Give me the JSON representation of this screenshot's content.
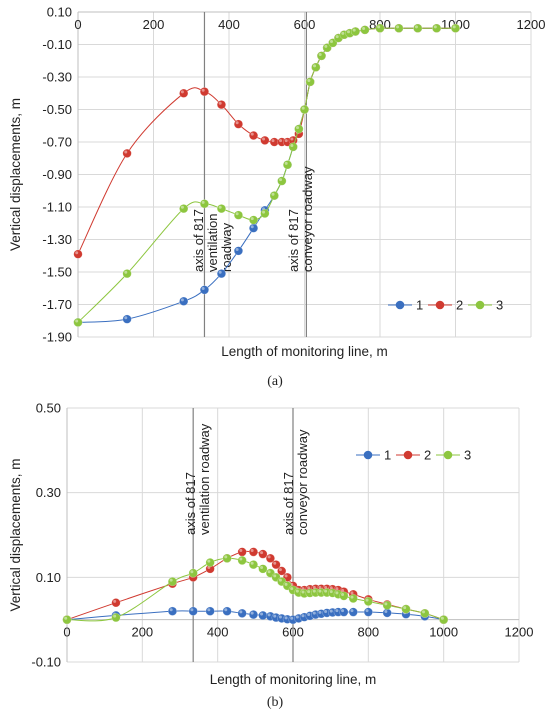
{
  "colors": {
    "1": "#3a6fc0",
    "2": "#d03a30",
    "3": "#8dc63f",
    "grid": "#d9d9d9",
    "axis": "#bfbfbf",
    "marker_line": "#808080"
  },
  "chart_data": [
    {
      "type": "line",
      "panel_label": "(a)",
      "xlabel": "Length of monitoring line, m",
      "ylabel": "Vertical displacements, m",
      "xlim": [
        0,
        1200
      ],
      "ylim": [
        -1.9,
        0.1
      ],
      "x_ticks": [
        "0",
        "200",
        "400",
        "600",
        "800",
        "1000",
        "1200"
      ],
      "y_ticks": [
        "0.10",
        "-0.10",
        "-0.30",
        "-0.50",
        "-0.70",
        "-0.90",
        "-1.10",
        "-1.30",
        "-1.50",
        "-1.70",
        "-1.90"
      ],
      "x_axis_position": "top",
      "grid": true,
      "legend_position": "bottom-right",
      "vertical_lines": [
        {
          "x": 335,
          "text_lines": [
            "axis of 817",
            "ventilation",
            "roadway"
          ]
        },
        {
          "x": 605,
          "text_lines": [
            "axis of 817",
            "conveyor roadway"
          ]
        }
      ],
      "series": [
        {
          "name": "1",
          "x": [
            0,
            130,
            280,
            335,
            380,
            425,
            465,
            495,
            520,
            540,
            555,
            570,
            585,
            600,
            615,
            630,
            645,
            660,
            675,
            690,
            705,
            720,
            735,
            760,
            800,
            850,
            900,
            950,
            1000
          ],
          "y": [
            -1.81,
            -1.79,
            -1.68,
            -1.61,
            -1.51,
            -1.37,
            -1.23,
            -1.12,
            -1.03,
            -0.94,
            -0.84,
            -0.73,
            -0.62,
            -0.5,
            -0.33,
            -0.24,
            -0.17,
            -0.12,
            -0.09,
            -0.06,
            -0.04,
            -0.03,
            -0.02,
            -0.01,
            0.0,
            0.0,
            0.0,
            0.0,
            0.0
          ]
        },
        {
          "name": "2",
          "x": [
            0,
            130,
            280,
            335,
            380,
            425,
            465,
            495,
            520,
            540,
            555,
            570,
            585,
            600,
            615,
            630,
            645,
            660,
            675,
            690,
            705,
            720,
            735,
            760,
            800,
            850,
            900,
            950,
            1000
          ],
          "y": [
            -1.39,
            -0.77,
            -0.4,
            -0.39,
            -0.47,
            -0.59,
            -0.66,
            -0.69,
            -0.7,
            -0.7,
            -0.7,
            -0.69,
            -0.65,
            -0.5,
            -0.33,
            -0.24,
            -0.17,
            -0.12,
            -0.09,
            -0.06,
            -0.04,
            -0.03,
            -0.02,
            -0.01,
            0.0,
            0.0,
            0.0,
            0.0,
            0.0
          ]
        },
        {
          "name": "3",
          "x": [
            0,
            130,
            280,
            335,
            380,
            425,
            465,
            495,
            520,
            540,
            555,
            570,
            585,
            600,
            615,
            630,
            645,
            660,
            675,
            690,
            705,
            720,
            735,
            760,
            800,
            850,
            900,
            950,
            1000
          ],
          "y": [
            -1.81,
            -1.51,
            -1.11,
            -1.08,
            -1.11,
            -1.15,
            -1.18,
            -1.14,
            -1.03,
            -0.94,
            -0.84,
            -0.73,
            -0.62,
            -0.5,
            -0.33,
            -0.24,
            -0.17,
            -0.12,
            -0.09,
            -0.06,
            -0.04,
            -0.03,
            -0.02,
            -0.01,
            0.0,
            0.0,
            0.0,
            0.0,
            0.0
          ]
        }
      ]
    },
    {
      "type": "line",
      "panel_label": "(b)",
      "xlabel": "Length of monitoring line, m",
      "ylabel": "Vertical displacements, m",
      "xlim": [
        0,
        1200
      ],
      "ylim": [
        -0.1,
        0.5
      ],
      "x_ticks": [
        "0",
        "200",
        "400",
        "600",
        "800",
        "1000",
        "1200"
      ],
      "y_ticks": [
        "0.50",
        "0.30",
        "0.10",
        "-0.10"
      ],
      "x_axis_position": "zero",
      "grid": true,
      "legend_position": "top-right",
      "vertical_lines": [
        {
          "x": 335,
          "text_lines": [
            "axis of 817",
            "ventilation roadway"
          ]
        },
        {
          "x": 600,
          "text_lines": [
            "axis of 817",
            "conveyor roadway"
          ]
        }
      ],
      "series": [
        {
          "name": "1",
          "x": [
            0,
            130,
            280,
            335,
            380,
            425,
            465,
            495,
            520,
            540,
            555,
            570,
            585,
            600,
            615,
            630,
            645,
            660,
            675,
            690,
            705,
            720,
            735,
            760,
            800,
            850,
            900,
            950,
            1000
          ],
          "y": [
            0.0,
            0.01,
            0.02,
            0.02,
            0.02,
            0.02,
            0.015,
            0.012,
            0.01,
            0.008,
            0.005,
            0.003,
            0.001,
            0.0,
            0.003,
            0.006,
            0.009,
            0.012,
            0.014,
            0.016,
            0.017,
            0.018,
            0.018,
            0.018,
            0.018,
            0.016,
            0.013,
            0.008,
            0.0
          ]
        },
        {
          "name": "2",
          "x": [
            0,
            130,
            280,
            335,
            380,
            425,
            465,
            495,
            520,
            540,
            555,
            570,
            585,
            600,
            615,
            630,
            645,
            660,
            675,
            690,
            705,
            720,
            735,
            760,
            800,
            850,
            900,
            950,
            1000
          ],
          "y": [
            0.0,
            0.04,
            0.085,
            0.1,
            0.12,
            0.145,
            0.16,
            0.16,
            0.155,
            0.145,
            0.13,
            0.115,
            0.1,
            0.08,
            0.07,
            0.07,
            0.072,
            0.073,
            0.073,
            0.073,
            0.072,
            0.07,
            0.066,
            0.06,
            0.048,
            0.036,
            0.025,
            0.015,
            0.0
          ]
        },
        {
          "name": "3",
          "x": [
            0,
            130,
            280,
            335,
            380,
            425,
            465,
            495,
            520,
            540,
            555,
            570,
            585,
            600,
            615,
            630,
            645,
            660,
            675,
            690,
            705,
            720,
            735,
            760,
            800,
            850,
            900,
            950,
            1000
          ],
          "y": [
            0.0,
            0.005,
            0.09,
            0.11,
            0.135,
            0.145,
            0.14,
            0.13,
            0.12,
            0.11,
            0.1,
            0.09,
            0.08,
            0.07,
            0.064,
            0.062,
            0.063,
            0.064,
            0.064,
            0.064,
            0.063,
            0.06,
            0.056,
            0.05,
            0.043,
            0.034,
            0.025,
            0.015,
            0.0
          ]
        }
      ]
    }
  ]
}
